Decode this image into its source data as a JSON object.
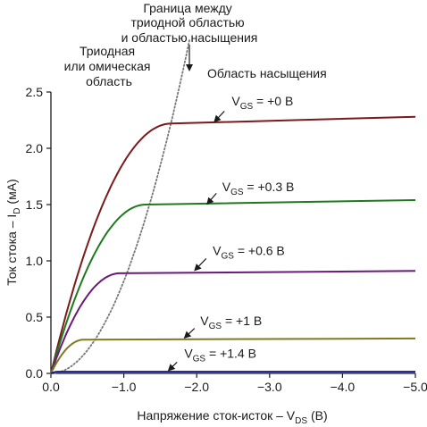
{
  "chart_data": {
    "type": "line",
    "xlabel_main": "Напряжение сток-исток – V",
    "xlabel_sub": "DS",
    "xlabel_unit": " (В)",
    "ylabel_main": "Ток стока – I",
    "ylabel_sub": "D",
    "ylabel_unit": " (мА)",
    "xlim": [
      0,
      -5
    ],
    "ylim": [
      0,
      2.5
    ],
    "x_ticks": [
      0,
      -1,
      -2,
      -3,
      -4,
      -5
    ],
    "x_tick_labels": [
      "0.0",
      "−1.0",
      "−2.0",
      "−3.0",
      "−4.0",
      "−5.0"
    ],
    "y_ticks": [
      0,
      0.5,
      1,
      1.5,
      2,
      2.5
    ],
    "y_tick_labels": [
      "0.0",
      "0.5",
      "1.0",
      "1.5",
      "2.0",
      "2.5"
    ],
    "grid": false,
    "series": [
      {
        "name_main": "V",
        "name_sub": "GS",
        "name_val": " = +0 В",
        "color": "#7a1a1a",
        "vsat": -1.65,
        "isat": 2.22,
        "iend": 2.28,
        "label_x": -2.48,
        "label_y": 2.38,
        "arrow_from": [
          -2.38,
          2.33
        ],
        "arrow_to": [
          -2.25,
          2.24
        ]
      },
      {
        "name_main": "V",
        "name_sub": "GS",
        "name_val": " = +0.3 В",
        "color": "#1e7a1e",
        "vsat": -1.3,
        "isat": 1.5,
        "iend": 1.54,
        "label_x": -2.35,
        "label_y": 1.62,
        "arrow_from": [
          -2.27,
          1.6
        ],
        "arrow_to": [
          -2.15,
          1.51
        ]
      },
      {
        "name_main": "V",
        "name_sub": "GS",
        "name_val": " = +0.6 В",
        "color": "#6a1a7a",
        "vsat": -0.95,
        "isat": 0.89,
        "iend": 0.91,
        "label_x": -2.22,
        "label_y": 1.05,
        "arrow_from": [
          -2.13,
          1.02
        ],
        "arrow_to": [
          -1.98,
          0.92
        ]
      },
      {
        "name_main": "V",
        "name_sub": "GS",
        "name_val": " = +1 В",
        "color": "#7e7a22",
        "vsat": -0.45,
        "isat": 0.3,
        "iend": 0.31,
        "label_x": -2.05,
        "label_y": 0.43,
        "arrow_from": [
          -1.97,
          0.4
        ],
        "arrow_to": [
          -1.84,
          0.32
        ]
      },
      {
        "name_main": "V",
        "name_sub": "GS",
        "name_val": " = +1.4 В",
        "color": "#1a1a8a",
        "vsat": -0.1,
        "isat": 0.015,
        "iend": 0.015,
        "label_x": -1.83,
        "label_y": 0.14,
        "arrow_from": [
          -1.73,
          0.1
        ],
        "arrow_to": [
          -1.62,
          0.03
        ]
      }
    ],
    "boundary": {
      "color": "#777777",
      "k": 0.82,
      "x_end": -1.9
    },
    "annotations": {
      "boundary_lines": [
        "Граница между",
        "триодной областью",
        "и областью насыщения"
      ],
      "triode_lines": [
        "Триодная",
        "или омическая",
        "область"
      ],
      "saturation": "Область насыщения"
    }
  }
}
